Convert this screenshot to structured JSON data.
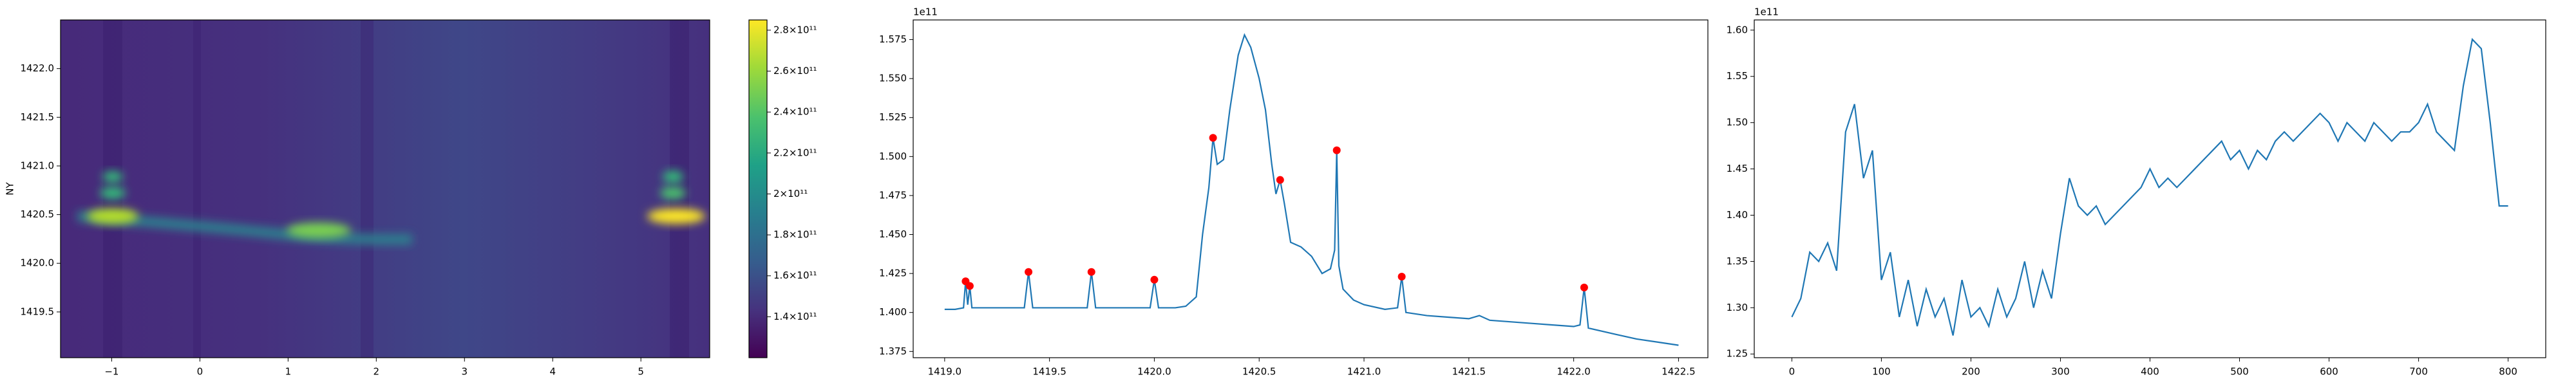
{
  "chart_data": [
    {
      "type": "heatmap",
      "ylabel": "NY",
      "xlim": [
        -1.58,
        5.78
      ],
      "ylim": [
        1419.03,
        1422.5
      ],
      "xticks": [
        {
          "value": -1,
          "label": "−1"
        },
        0,
        1,
        2,
        3,
        4,
        5
      ],
      "yticks": [
        1419.5,
        {
          "value": 1420,
          "label": "1420.0"
        },
        1420.5,
        {
          "value": 1421,
          "label": "1421.0"
        },
        1421.5,
        {
          "value": 1422,
          "label": "1422.0"
        }
      ],
      "colorbar": {
        "lim": [
          120000000000,
          285000000000
        ],
        "ticks": [
          {
            "value": 140000000000,
            "label": "1.4×10¹¹"
          },
          {
            "value": 160000000000,
            "label": "1.6×10¹¹"
          },
          {
            "value": 180000000000,
            "label": "1.8×10¹¹"
          },
          {
            "value": 200000000000,
            "label": "2×10¹¹"
          },
          {
            "value": 220000000000,
            "label": "2.2×10¹¹"
          },
          {
            "value": 240000000000,
            "label": "2.4×10¹¹"
          },
          {
            "value": 260000000000,
            "label": "2.6×10¹¹"
          },
          {
            "value": 280000000000,
            "label": "2.8×10¹¹"
          }
        ]
      }
    },
    {
      "type": "line",
      "offset_text": "1e11",
      "xlim": [
        1418.85,
        1422.64
      ],
      "ylim": [
        1.371,
        1.5876
      ],
      "xticks": [
        {
          "value": 1419,
          "label": "1419.0"
        },
        1419.5,
        {
          "value": 1420,
          "label": "1420.0"
        },
        1420.5,
        {
          "value": 1421,
          "label": "1421.0"
        },
        1421.5,
        {
          "value": 1422,
          "label": "1422.0"
        },
        1422.5
      ],
      "yticks": [
        1.375,
        {
          "value": 1.4,
          "label": "1.400"
        },
        1.425,
        {
          "value": 1.45,
          "label": "1.450"
        },
        1.475,
        {
          "value": 1.5,
          "label": "1.500"
        },
        1.525,
        {
          "value": 1.55,
          "label": "1.550"
        },
        1.575
      ],
      "x": [
        1419.0,
        1419.05,
        1419.09,
        1419.1,
        1419.11,
        1419.12,
        1419.13,
        1419.2,
        1419.3,
        1419.38,
        1419.4,
        1419.42,
        1419.5,
        1419.6,
        1419.68,
        1419.7,
        1419.72,
        1419.8,
        1419.9,
        1419.98,
        1420.0,
        1420.02,
        1420.1,
        1420.15,
        1420.2,
        1420.23,
        1420.26,
        1420.28,
        1420.3,
        1420.33,
        1420.36,
        1420.4,
        1420.43,
        1420.46,
        1420.5,
        1420.53,
        1420.56,
        1420.58,
        1420.6,
        1420.62,
        1420.65,
        1420.7,
        1420.75,
        1420.8,
        1420.84,
        1420.86,
        1420.87,
        1420.88,
        1420.9,
        1420.95,
        1421.0,
        1421.1,
        1421.16,
        1421.18,
        1421.2,
        1421.3,
        1421.4,
        1421.5,
        1421.55,
        1421.6,
        1421.8,
        1421.9,
        1422.0,
        1422.03,
        1422.05,
        1422.07,
        1422.2,
        1422.3,
        1422.4,
        1422.5
      ],
      "series": [
        {
          "color": "#1f77b4",
          "values": [
            1.402,
            1.402,
            1.403,
            1.42,
            1.405,
            1.417,
            1.403,
            1.403,
            1.403,
            1.403,
            1.426,
            1.403,
            1.403,
            1.403,
            1.403,
            1.426,
            1.403,
            1.403,
            1.403,
            1.403,
            1.421,
            1.403,
            1.403,
            1.404,
            1.41,
            1.45,
            1.48,
            1.512,
            1.495,
            1.498,
            1.53,
            1.565,
            1.578,
            1.57,
            1.55,
            1.53,
            1.495,
            1.476,
            1.485,
            1.47,
            1.445,
            1.442,
            1.436,
            1.425,
            1.428,
            1.44,
            1.504,
            1.43,
            1.415,
            1.408,
            1.405,
            1.402,
            1.403,
            1.423,
            1.4,
            1.398,
            1.397,
            1.396,
            1.398,
            1.395,
            1.393,
            1.392,
            1.391,
            1.392,
            1.416,
            1.39,
            1.386,
            1.383,
            1.381,
            1.379
          ]
        }
      ],
      "peaks": {
        "color": "#ff0000",
        "x": [
          1419.1,
          1419.12,
          1419.4,
          1419.7,
          1420.0,
          1420.28,
          1420.6,
          1420.87,
          1421.18,
          1422.05
        ],
        "values": [
          1.42,
          1.417,
          1.426,
          1.426,
          1.421,
          1.512,
          1.485,
          1.504,
          1.423,
          1.416
        ]
      }
    },
    {
      "type": "line",
      "offset_text": "1e11",
      "xlim": [
        -42,
        842
      ],
      "ylim": [
        1.246,
        1.611
      ],
      "xticks": [
        0,
        100,
        200,
        300,
        400,
        500,
        600,
        700,
        800
      ],
      "yticks": [
        1.25,
        {
          "value": 1.3,
          "label": "1.30"
        },
        1.35,
        {
          "value": 1.4,
          "label": "1.40"
        },
        1.45,
        {
          "value": 1.5,
          "label": "1.50"
        },
        1.55,
        {
          "value": 1.6,
          "label": "1.60"
        }
      ],
      "x": [
        0,
        10,
        20,
        30,
        40,
        50,
        60,
        70,
        80,
        90,
        100,
        110,
        120,
        130,
        140,
        150,
        160,
        170,
        180,
        190,
        200,
        210,
        220,
        230,
        240,
        250,
        260,
        270,
        280,
        290,
        300,
        310,
        320,
        330,
        340,
        350,
        360,
        370,
        380,
        390,
        400,
        410,
        420,
        430,
        440,
        450,
        460,
        470,
        480,
        490,
        500,
        510,
        520,
        530,
        540,
        550,
        560,
        570,
        580,
        590,
        600,
        610,
        620,
        630,
        640,
        650,
        660,
        670,
        680,
        690,
        700,
        710,
        720,
        730,
        740,
        750,
        760,
        770,
        780,
        790,
        800
      ],
      "series": [
        {
          "color": "#1f77b4",
          "values": [
            1.29,
            1.31,
            1.36,
            1.35,
            1.37,
            1.34,
            1.49,
            1.52,
            1.44,
            1.47,
            1.33,
            1.36,
            1.29,
            1.33,
            1.28,
            1.32,
            1.29,
            1.31,
            1.27,
            1.33,
            1.29,
            1.3,
            1.28,
            1.32,
            1.29,
            1.31,
            1.35,
            1.3,
            1.34,
            1.31,
            1.38,
            1.44,
            1.41,
            1.4,
            1.41,
            1.39,
            1.4,
            1.41,
            1.42,
            1.43,
            1.45,
            1.43,
            1.44,
            1.43,
            1.44,
            1.45,
            1.46,
            1.47,
            1.48,
            1.46,
            1.47,
            1.45,
            1.47,
            1.46,
            1.48,
            1.49,
            1.48,
            1.49,
            1.5,
            1.51,
            1.5,
            1.48,
            1.5,
            1.49,
            1.48,
            1.5,
            1.49,
            1.48,
            1.49,
            1.49,
            1.5,
            1.52,
            1.49,
            1.48,
            1.47,
            1.54,
            1.59,
            1.58,
            1.5,
            1.41,
            1.41
          ]
        }
      ]
    }
  ]
}
